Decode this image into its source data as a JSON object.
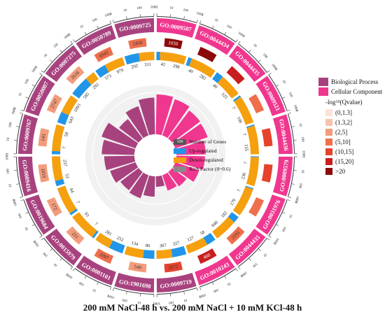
{
  "caption": "200 mM NaCl-48 h vs. 200 mM NaCl + 10 mM KCl-48 h",
  "colors": {
    "bp": "#a8427f",
    "cc": "#f0378f",
    "up": "#2196e8",
    "down": "#f5a00f",
    "rich": "#8a8a8a",
    "q_scale": [
      "#fbe3d6",
      "#f8c4ad",
      "#f39c7c",
      "#ee6f4c",
      "#e5432c",
      "#c81e1e",
      "#8b0a0a"
    ]
  },
  "legend": {
    "categories": [
      {
        "label": "Biological Process",
        "color": "#a8427f"
      },
      {
        "label": "Cellular Component",
        "color": "#f0378f"
      }
    ],
    "q_title": "-log10(Qvalue)",
    "q_bins": [
      "(0,1.3]",
      "(1.3,2]",
      "(2,5]",
      "(5,10]",
      "(10,15]",
      "(15,20]",
      ">20"
    ]
  },
  "center_legend": {
    "genes_box": "100",
    "items": [
      "Number of Genes",
      "Up-regulated",
      "Down-regulated",
      "Rich Factor (0~0.6)"
    ]
  },
  "chart_data": {
    "type": "circular-go-enrichment",
    "scale_ticks": [
      "1",
      "10",
      "100",
      "1000"
    ],
    "terms": [
      {
        "id": "GO:0009507",
        "cat": "cc",
        "number": "1050",
        "q": 6,
        "up": 42,
        "down": 298,
        "rich": 0.49
      },
      {
        "id": "GO:0044434",
        "cat": "cc",
        "number": "",
        "q": 6,
        "up": 40,
        "down": 282,
        "rich": 0.47
      },
      {
        "id": "GO:0044435",
        "cat": "cc",
        "number": "",
        "q": 5,
        "up": 40,
        "down": 125,
        "rich": 0.43
      },
      {
        "id": "GO:0009521",
        "cat": "cc",
        "number": "",
        "q": 3,
        "up": 7,
        "down": 106,
        "rich": 0.42
      },
      {
        "id": "GO:0044436",
        "cat": "cc",
        "number": "",
        "q": 4,
        "up": 7,
        "down": 155,
        "rich": 0.36
      },
      {
        "id": "GO:0009579",
        "cat": "cc",
        "number": "",
        "q": 4,
        "up": 7,
        "down": 236,
        "rich": 0.35
      },
      {
        "id": "GO:0031976",
        "cat": "cc",
        "number": "",
        "q": 3,
        "up": 7,
        "down": 179,
        "rich": 0.31
      },
      {
        "id": "GO:0044435",
        "cat": "cc",
        "number": "2593",
        "q": 3,
        "up": 182,
        "down": 640,
        "rich": 0.22
      },
      {
        "id": "GO:0010243",
        "cat": "cc",
        "number": "460",
        "q": 5,
        "up": 58,
        "down": 127,
        "rich": 0.2
      },
      {
        "id": "GO:0009719",
        "cat": "bp",
        "number": "2672",
        "q": 4,
        "up": 327,
        "down": 367,
        "rich": 0.13
      },
      {
        "id": "GO:1901698",
        "cat": "bp",
        "number": "540",
        "q": 2,
        "up": 80,
        "down": 134,
        "rich": 0.25
      },
      {
        "id": "GO:0001101",
        "cat": "bp",
        "number": "1097",
        "q": 3,
        "up": 252,
        "down": 281,
        "rich": 0.3
      },
      {
        "id": "GO:0015979",
        "cat": "bp",
        "number": "211",
        "q": 2,
        "up": 7,
        "down": 93,
        "rich": 0.28
      },
      {
        "id": "GO:0019684",
        "cat": "bp",
        "number": "172",
        "q": 2,
        "up": 7,
        "down": 84,
        "rich": 0.33
      },
      {
        "id": "GO:0009416",
        "cat": "bp",
        "number": "1019",
        "q": 2,
        "up": 53,
        "down": 237,
        "rich": 0.37
      },
      {
        "id": "GO:0009767",
        "cat": "bp",
        "number": "143",
        "q": 2,
        "up": 7,
        "down": 58,
        "rich": 0.4
      },
      {
        "id": "GO:0050007",
        "cat": "bp",
        "number": "2747",
        "q": 2,
        "up": 643,
        "down": 1093,
        "rich": 0.44
      },
      {
        "id": "GO:0007275",
        "cat": "bp",
        "number": "2616",
        "q": 2,
        "up": 585,
        "down": 292,
        "rich": 0.3
      },
      {
        "id": "GO:0050789",
        "cat": "bp",
        "number": "6945",
        "q": 3,
        "up": 573,
        "down": 979,
        "rich": 0.38
      },
      {
        "id": "GO:0009725",
        "cat": "bp",
        "number": "2458",
        "q": 3,
        "up": 292,
        "down": 311,
        "rich": 0.45
      }
    ]
  }
}
